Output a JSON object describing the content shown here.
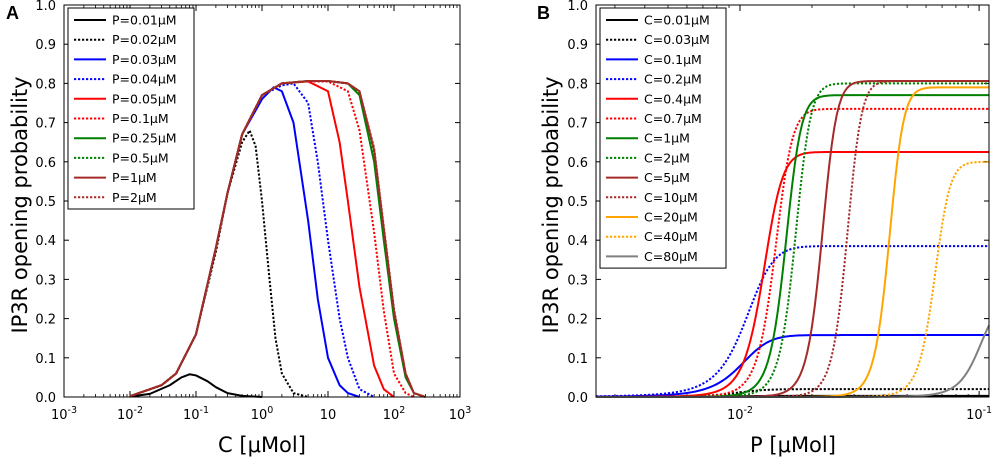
{
  "chart_data": [
    {
      "type": "line",
      "panel": "A",
      "xscale": "log",
      "xlabel": "C [μMol]",
      "ylabel": "IP3R opening probability",
      "xlim": [
        0.001,
        1000
      ],
      "ylim": [
        0,
        1
      ],
      "xtick_labels": [
        "10^-3",
        "10^-2",
        "10^-1",
        "10^0",
        "10",
        "10^2",
        "10^3"
      ],
      "ytick_labels": [
        "0.0",
        "0.1",
        "0.2",
        "0.3",
        "0.4",
        "0.5",
        "0.6",
        "0.7",
        "0.8",
        "0.9",
        "1.0"
      ],
      "legend_position": "top-left",
      "series": [
        {
          "name": "P=0.01μM",
          "color": "#000000",
          "dash": "solid",
          "points": [
            [
              0.01,
              0.001
            ],
            [
              0.02,
              0.008
            ],
            [
              0.04,
              0.03
            ],
            [
              0.06,
              0.05
            ],
            [
              0.08,
              0.058
            ],
            [
              0.1,
              0.055
            ],
            [
              0.15,
              0.04
            ],
            [
              0.2,
              0.025
            ],
            [
              0.3,
              0.01
            ],
            [
              0.5,
              0.003
            ],
            [
              1,
              0.0
            ]
          ]
        },
        {
          "name": "P=0.02μM",
          "color": "#000000",
          "dash": "dotted",
          "points": [
            [
              0.01,
              0.002
            ],
            [
              0.03,
              0.03
            ],
            [
              0.05,
              0.06
            ],
            [
              0.1,
              0.16
            ],
            [
              0.2,
              0.37
            ],
            [
              0.3,
              0.52
            ],
            [
              0.5,
              0.65
            ],
            [
              0.65,
              0.68
            ],
            [
              0.8,
              0.64
            ],
            [
              1,
              0.5
            ],
            [
              1.3,
              0.3
            ],
            [
              1.6,
              0.15
            ],
            [
              2,
              0.06
            ],
            [
              3,
              0.01
            ],
            [
              5,
              0.0
            ]
          ]
        },
        {
          "name": "P=0.03μM",
          "color": "#0000ff",
          "dash": "solid",
          "points": [
            [
              0.01,
              0.002
            ],
            [
              0.03,
              0.03
            ],
            [
              0.05,
              0.06
            ],
            [
              0.1,
              0.16
            ],
            [
              0.2,
              0.38
            ],
            [
              0.3,
              0.52
            ],
            [
              0.5,
              0.67
            ],
            [
              1,
              0.76
            ],
            [
              1.5,
              0.79
            ],
            [
              2,
              0.78
            ],
            [
              3,
              0.7
            ],
            [
              5,
              0.45
            ],
            [
              7,
              0.25
            ],
            [
              10,
              0.1
            ],
            [
              15,
              0.03
            ],
            [
              20,
              0.01
            ],
            [
              30,
              0.0
            ]
          ]
        },
        {
          "name": "P=0.04μM",
          "color": "#0000ff",
          "dash": "dotted",
          "points": [
            [
              0.01,
              0.002
            ],
            [
              0.03,
              0.03
            ],
            [
              0.05,
              0.06
            ],
            [
              0.1,
              0.16
            ],
            [
              0.2,
              0.38
            ],
            [
              0.3,
              0.52
            ],
            [
              0.5,
              0.67
            ],
            [
              1,
              0.77
            ],
            [
              2,
              0.795
            ],
            [
              3,
              0.8
            ],
            [
              5,
              0.75
            ],
            [
              7,
              0.6
            ],
            [
              10,
              0.4
            ],
            [
              15,
              0.2
            ],
            [
              20,
              0.1
            ],
            [
              30,
              0.02
            ],
            [
              50,
              0.0
            ]
          ]
        },
        {
          "name": "P=0.05μM",
          "color": "#ff0000",
          "dash": "solid",
          "points": [
            [
              0.01,
              0.002
            ],
            [
              0.03,
              0.03
            ],
            [
              0.05,
              0.06
            ],
            [
              0.1,
              0.16
            ],
            [
              0.2,
              0.38
            ],
            [
              0.3,
              0.52
            ],
            [
              0.5,
              0.67
            ],
            [
              1,
              0.77
            ],
            [
              2,
              0.8
            ],
            [
              5,
              0.805
            ],
            [
              10,
              0.78
            ],
            [
              15,
              0.65
            ],
            [
              20,
              0.5
            ],
            [
              30,
              0.28
            ],
            [
              50,
              0.08
            ],
            [
              70,
              0.02
            ],
            [
              100,
              0.0
            ]
          ]
        },
        {
          "name": "P=0.1μM",
          "color": "#ff0000",
          "dash": "dotted",
          "points": [
            [
              0.01,
              0.002
            ],
            [
              0.03,
              0.03
            ],
            [
              0.05,
              0.06
            ],
            [
              0.1,
              0.16
            ],
            [
              0.2,
              0.38
            ],
            [
              0.3,
              0.52
            ],
            [
              0.5,
              0.67
            ],
            [
              1,
              0.77
            ],
            [
              2,
              0.8
            ],
            [
              5,
              0.805
            ],
            [
              10,
              0.805
            ],
            [
              20,
              0.78
            ],
            [
              30,
              0.68
            ],
            [
              50,
              0.42
            ],
            [
              70,
              0.22
            ],
            [
              100,
              0.06
            ],
            [
              150,
              0.01
            ],
            [
              200,
              0.0
            ]
          ]
        },
        {
          "name": "P=0.25μM",
          "color": "#008000",
          "dash": "solid",
          "points": [
            [
              0.01,
              0.002
            ],
            [
              0.03,
              0.03
            ],
            [
              0.05,
              0.06
            ],
            [
              0.1,
              0.16
            ],
            [
              0.2,
              0.38
            ],
            [
              0.3,
              0.52
            ],
            [
              0.5,
              0.67
            ],
            [
              1,
              0.77
            ],
            [
              2,
              0.8
            ],
            [
              5,
              0.806
            ],
            [
              10,
              0.806
            ],
            [
              20,
              0.8
            ],
            [
              30,
              0.77
            ],
            [
              50,
              0.6
            ],
            [
              70,
              0.4
            ],
            [
              100,
              0.2
            ],
            [
              150,
              0.05
            ],
            [
              200,
              0.01
            ],
            [
              300,
              0.0
            ]
          ]
        },
        {
          "name": "P=0.5μM",
          "color": "#008000",
          "dash": "dotted",
          "points": [
            [
              0.01,
              0.002
            ],
            [
              0.03,
              0.03
            ],
            [
              0.05,
              0.06
            ],
            [
              0.1,
              0.16
            ],
            [
              0.2,
              0.38
            ],
            [
              0.3,
              0.52
            ],
            [
              0.5,
              0.67
            ],
            [
              1,
              0.77
            ],
            [
              2,
              0.8
            ],
            [
              5,
              0.806
            ],
            [
              10,
              0.806
            ],
            [
              20,
              0.8
            ],
            [
              30,
              0.775
            ],
            [
              50,
              0.62
            ],
            [
              70,
              0.42
            ],
            [
              100,
              0.21
            ],
            [
              150,
              0.06
            ],
            [
              200,
              0.01
            ],
            [
              300,
              0.0
            ]
          ]
        },
        {
          "name": "P=1μM",
          "color": "#a52a2a",
          "dash": "solid",
          "points": [
            [
              0.01,
              0.002
            ],
            [
              0.03,
              0.03
            ],
            [
              0.05,
              0.06
            ],
            [
              0.1,
              0.16
            ],
            [
              0.2,
              0.38
            ],
            [
              0.3,
              0.52
            ],
            [
              0.5,
              0.67
            ],
            [
              1,
              0.77
            ],
            [
              2,
              0.8
            ],
            [
              5,
              0.806
            ],
            [
              10,
              0.806
            ],
            [
              20,
              0.8
            ],
            [
              30,
              0.78
            ],
            [
              50,
              0.63
            ],
            [
              70,
              0.43
            ],
            [
              100,
              0.22
            ],
            [
              150,
              0.06
            ],
            [
              200,
              0.01
            ],
            [
              300,
              0.0
            ]
          ]
        },
        {
          "name": "P=2μM",
          "color": "#a52a2a",
          "dash": "dotted",
          "points": [
            [
              0.01,
              0.002
            ],
            [
              0.03,
              0.03
            ],
            [
              0.05,
              0.06
            ],
            [
              0.1,
              0.16
            ],
            [
              0.2,
              0.38
            ],
            [
              0.3,
              0.52
            ],
            [
              0.5,
              0.67
            ],
            [
              1,
              0.77
            ],
            [
              2,
              0.8
            ],
            [
              5,
              0.806
            ],
            [
              10,
              0.806
            ],
            [
              20,
              0.8
            ],
            [
              30,
              0.78
            ],
            [
              50,
              0.635
            ],
            [
              70,
              0.435
            ],
            [
              100,
              0.225
            ],
            [
              150,
              0.06
            ],
            [
              200,
              0.01
            ],
            [
              300,
              0.0
            ]
          ]
        }
      ]
    },
    {
      "type": "line",
      "panel": "B",
      "xscale": "log",
      "xlabel": "P [μMol]",
      "ylabel": "IP3R opening probability",
      "xlim": [
        0.0025,
        0.11
      ],
      "ylim": [
        0,
        1
      ],
      "xtick_labels": [
        "10^-2",
        "10^-1"
      ],
      "ytick_labels": [
        "0.0",
        "0.1",
        "0.2",
        "0.3",
        "0.4",
        "0.5",
        "0.6",
        "0.7",
        "0.8",
        "0.9",
        "1.0"
      ],
      "legend_position": "top-left",
      "series": [
        {
          "name": "C=0.01μM",
          "color": "#000000",
          "dash": "solid",
          "x0": 0.0095,
          "k": 0.0015,
          "ymax": 0.003
        },
        {
          "name": "C=0.03μM",
          "color": "#000000",
          "dash": "dotted",
          "x0": 0.0095,
          "k": 0.0015,
          "ymax": 0.02
        },
        {
          "name": "C=0.1μM",
          "color": "#0000ff",
          "dash": "solid",
          "x0": 0.01,
          "k": 0.0015,
          "ymax": 0.158
        },
        {
          "name": "C=0.2μM",
          "color": "#0000ff",
          "dash": "dotted",
          "x0": 0.0105,
          "k": 0.0015,
          "ymax": 0.385
        },
        {
          "name": "C=0.4μM",
          "color": "#ff0000",
          "dash": "solid",
          "x0": 0.0125,
          "k": 0.0012,
          "ymax": 0.625
        },
        {
          "name": "C=0.7μM",
          "color": "#ff0000",
          "dash": "dotted",
          "x0": 0.014,
          "k": 0.0012,
          "ymax": 0.735
        },
        {
          "name": "C=1μM",
          "color": "#008000",
          "dash": "solid",
          "x0": 0.0155,
          "k": 0.0012,
          "ymax": 0.77
        },
        {
          "name": "C=2μM",
          "color": "#008000",
          "dash": "dotted",
          "x0": 0.017,
          "k": 0.0013,
          "ymax": 0.8
        },
        {
          "name": "C=5μM",
          "color": "#a52a2a",
          "dash": "solid",
          "x0": 0.022,
          "k": 0.0016,
          "ymax": 0.806
        },
        {
          "name": "C=10μM",
          "color": "#a52a2a",
          "dash": "dotted",
          "x0": 0.028,
          "k": 0.002,
          "ymax": 0.806
        },
        {
          "name": "C=20μM",
          "color": "#ffa500",
          "dash": "solid",
          "x0": 0.042,
          "k": 0.003,
          "ymax": 0.79
        },
        {
          "name": "C=40μM",
          "color": "#ffa500",
          "dash": "dotted",
          "x0": 0.065,
          "k": 0.005,
          "ymax": 0.6
        },
        {
          "name": "C=80μM",
          "color": "#808080",
          "dash": "solid",
          "x0": 0.1,
          "k": 0.01,
          "ymax": 0.25
        }
      ]
    }
  ]
}
